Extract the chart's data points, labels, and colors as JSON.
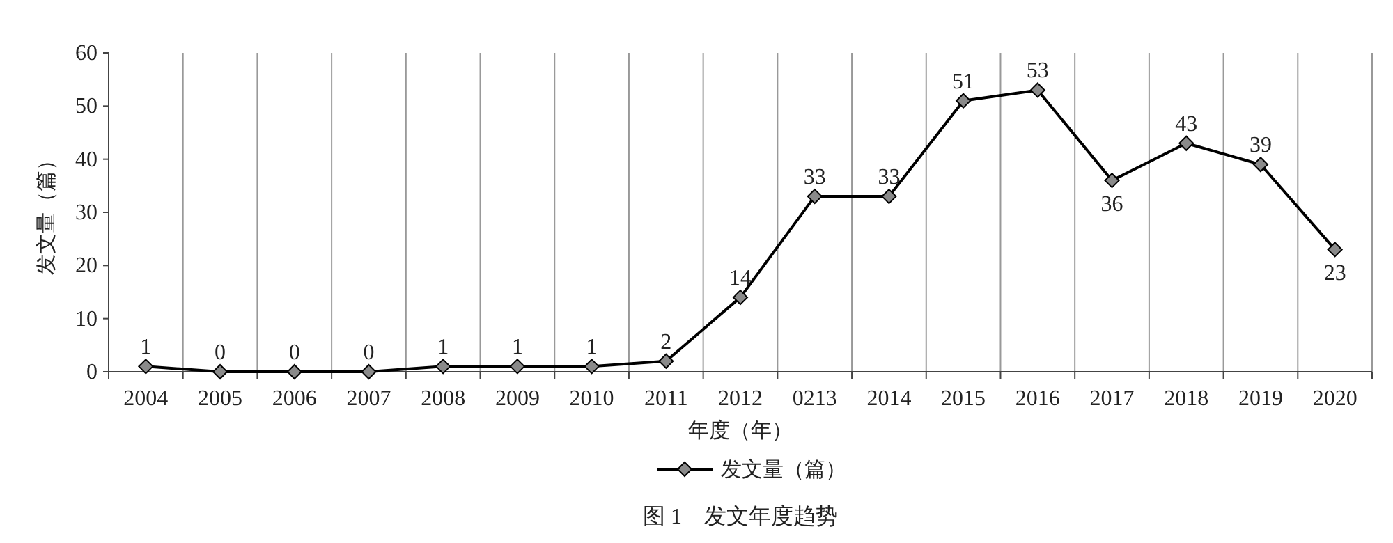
{
  "chart_data": {
    "type": "line",
    "title": "图 1　发文年度趋势",
    "xlabel": "年度（年）",
    "ylabel": "发文量（篇）",
    "categories": [
      "2004",
      "2005",
      "2006",
      "2007",
      "2008",
      "2009",
      "2010",
      "2011",
      "2012",
      "0213",
      "2014",
      "2015",
      "2016",
      "2017",
      "2018",
      "2019",
      "2020"
    ],
    "series": [
      {
        "name": "发文量（篇）",
        "color": "#000000",
        "values": [
          1,
          0,
          0,
          0,
          1,
          1,
          1,
          2,
          14,
          33,
          33,
          51,
          53,
          36,
          43,
          39,
          23
        ]
      }
    ],
    "ylim": [
      0,
      60
    ],
    "yticks": [
      0,
      10,
      20,
      30,
      40,
      50,
      60
    ],
    "grid": "x",
    "legend": "bottom",
    "marker": "diamond",
    "line_style": "solid",
    "data_labels": true
  }
}
